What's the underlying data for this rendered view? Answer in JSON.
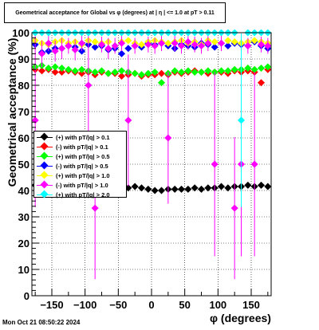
{
  "title": "Geometrical acceptance for Global vs φ (degrees) at | η | <= 1.0 at pT > 0.11",
  "xlabel": "φ (degrees)",
  "ylabel": "Geometrical acceptance (%)",
  "timestamp": "Mon Oct 21 08:50:22 2024",
  "legend": [
    {
      "label": "(+) with pT/|q| > 0.1",
      "color": "#000000"
    },
    {
      "label": "(-) with pT/|q| > 0.1",
      "color": "#ff0000"
    },
    {
      "label": "(+) with pT/|q| > 0.5",
      "color": "#00ff00"
    },
    {
      "label": "(-) with pT/|q| > 0.5",
      "color": "#0000ff"
    },
    {
      "label": "(+) with pT/|q| > 1.0",
      "color": "#ffff00"
    },
    {
      "label": "(-) with pT/|q| > 1.0",
      "color": "#ff00ff"
    },
    {
      "label": "(+) with pT/|q| > 2.0",
      "color": "#00ffff"
    }
  ],
  "chart_data": {
    "type": "scatter",
    "title": "Geometrical acceptance for Global vs φ (degrees) at | η | <= 1.0 at pT > 0.11",
    "xlabel": "φ (degrees)",
    "ylabel": "Geometrical acceptance (%)",
    "xlim": [
      -180,
      180
    ],
    "ylim": [
      0,
      100
    ],
    "xticks": [
      -150,
      -100,
      -50,
      0,
      50,
      100,
      150
    ],
    "yticks": [
      0,
      10,
      20,
      30,
      40,
      50,
      60,
      70,
      80,
      90,
      100
    ],
    "grid": true,
    "legend_position": "left-middle",
    "marker": "diamond",
    "series": [
      {
        "name": "(+) with pT/|q| > 0.1",
        "color": "#000000",
        "x": [
          -175,
          -165,
          -155,
          -145,
          -135,
          -125,
          -115,
          -105,
          -95,
          -85,
          -75,
          -65,
          -55,
          -45,
          -35,
          -25,
          -15,
          -5,
          5,
          15,
          25,
          35,
          45,
          55,
          65,
          75,
          85,
          95,
          105,
          115,
          125,
          135,
          145,
          155,
          165,
          175
        ],
        "y": [
          42.0,
          41.5,
          41.5,
          41.0,
          41.0,
          41.5,
          41.0,
          41.0,
          40.5,
          40.5,
          41.0,
          40.5,
          40.5,
          41.0,
          41.0,
          41.5,
          41.0,
          40.5,
          40.0,
          40.0,
          40.5,
          40.5,
          40.5,
          40.5,
          41.0,
          40.5,
          41.0,
          41.0,
          41.5,
          41.0,
          41.5,
          41.5,
          42.0,
          41.5,
          42.0,
          41.5
        ],
        "errors": []
      },
      {
        "name": "(-) with pT/|q| > 0.1",
        "color": "#ff0000",
        "x": [
          -175,
          -165,
          -155,
          -145,
          -135,
          -125,
          -115,
          -105,
          -95,
          -85,
          -75,
          -65,
          -55,
          -45,
          -35,
          -25,
          -15,
          -5,
          5,
          15,
          25,
          35,
          45,
          55,
          65,
          75,
          85,
          95,
          105,
          115,
          125,
          135,
          145,
          155,
          165,
          175
        ],
        "y": [
          86.0,
          85.5,
          86.0,
          85.0,
          85.0,
          85.5,
          85.0,
          84.5,
          85.0,
          84.0,
          85.0,
          84.5,
          84.5,
          83.5,
          84.0,
          84.5,
          83.5,
          84.0,
          84.0,
          84.5,
          84.0,
          85.0,
          84.5,
          85.0,
          85.5,
          85.0,
          84.5,
          85.0,
          85.0,
          84.5,
          85.5,
          85.0,
          85.5,
          85.0,
          81.0,
          86.0
        ],
        "errors": []
      },
      {
        "name": "(+) with pT/|q| > 0.5",
        "color": "#00ff00",
        "x": [
          -175,
          -165,
          -155,
          -145,
          -135,
          -125,
          -115,
          -105,
          -95,
          -85,
          -75,
          -65,
          -55,
          -45,
          -35,
          -25,
          -15,
          -5,
          5,
          15,
          25,
          35,
          45,
          55,
          65,
          75,
          85,
          95,
          105,
          115,
          125,
          135,
          145,
          155,
          165,
          175
        ],
        "y": [
          87.0,
          87.5,
          86.5,
          87.0,
          86.5,
          86.0,
          85.5,
          86.0,
          85.5,
          85.0,
          85.5,
          84.5,
          85.0,
          85.5,
          85.0,
          84.5,
          84.0,
          84.5,
          85.0,
          81.0,
          84.5,
          85.5,
          85.0,
          85.5,
          85.0,
          85.0,
          85.5,
          85.0,
          85.5,
          85.5,
          86.0,
          86.0,
          86.5,
          86.0,
          86.5,
          87.0
        ],
        "errors": []
      },
      {
        "name": "(-) with pT/|q| > 0.5",
        "color": "#0000ff",
        "x": [
          -175,
          -165,
          -155,
          -145,
          -135,
          -125,
          -115,
          -105,
          -95,
          -85,
          -75,
          -65,
          -55,
          -45,
          -35,
          -25,
          -15,
          -5,
          5,
          15,
          25,
          35,
          45,
          55,
          65,
          75,
          85,
          95,
          105,
          115,
          125,
          135,
          145,
          155,
          165,
          175
        ],
        "y": [
          95.5,
          92.5,
          93.0,
          94.0,
          94.0,
          95.0,
          94.5,
          93.0,
          95.5,
          94.5,
          95.0,
          93.5,
          94.0,
          92.0,
          94.0,
          95.0,
          94.5,
          96.0,
          95.5,
          96.0,
          95.0,
          94.0,
          95.5,
          95.0,
          94.5,
          96.0,
          95.5,
          94.5,
          96.0,
          95.0,
          96.0,
          95.5,
          95.0,
          96.5,
          95.0,
          94.0
        ],
        "errors": []
      },
      {
        "name": "(+) with pT/|q| > 1.0",
        "color": "#ffff00",
        "x": [
          -175,
          -165,
          -155,
          -145,
          -135,
          -125,
          -115,
          -105,
          -95,
          -85,
          -75,
          -65,
          -55,
          -45,
          -35,
          -25,
          -15,
          -5,
          5,
          15,
          25,
          35,
          45,
          55,
          65,
          75,
          85,
          95,
          105,
          115,
          125,
          135,
          145,
          155,
          165,
          175
        ],
        "y": [
          97.0,
          96.0,
          95.5,
          96.5,
          97.0,
          96.0,
          96.5,
          95.5,
          97.0,
          96.5,
          96.0,
          96.5,
          95.0,
          96.5,
          97.0,
          96.0,
          95.5,
          96.5,
          97.0,
          96.5,
          96.0,
          96.5,
          97.0,
          96.0,
          96.5,
          95.5,
          97.0,
          96.5,
          96.0,
          97.0,
          96.5,
          96.0,
          96.5,
          97.0,
          96.5,
          96.0
        ],
        "errors": []
      },
      {
        "name": "(-) with pT/|q| > 1.0",
        "color": "#ff00ff",
        "x": [
          -175,
          -165,
          -155,
          -145,
          -135,
          -125,
          -115,
          -105,
          -95,
          -85,
          -75,
          -65,
          -55,
          -45,
          -35,
          -25,
          -15,
          -5,
          5,
          15,
          25,
          35,
          45,
          55,
          65,
          75,
          85,
          95,
          105,
          115,
          125,
          135,
          145,
          155,
          165,
          175
        ],
        "y": [
          66.7,
          92.0,
          96.0,
          93.0,
          94.0,
          95.0,
          93.5,
          96.0,
          80.0,
          33.3,
          95.5,
          94.0,
          95.0,
          96.0,
          66.7,
          95.0,
          100.0,
          95.5,
          95.0,
          96.0,
          60.0,
          96.0,
          95.0,
          96.5,
          95.5,
          95.0,
          96.0,
          50.0,
          96.0,
          100.0,
          33.3,
          50.0,
          95.0,
          50.0,
          95.5,
          95.0
        ],
        "errors": [
          33,
          5,
          3,
          4,
          4,
          3,
          4,
          3,
          20,
          27,
          3,
          4,
          3,
          3,
          25,
          3,
          0,
          3,
          3,
          3,
          25,
          3,
          3,
          3,
          3,
          3,
          3,
          35,
          3,
          0,
          27,
          35,
          3,
          35,
          3,
          3
        ]
      },
      {
        "name": "(+) with pT/|q| > 2.0",
        "color": "#00ffff",
        "x": [
          -175,
          -165,
          -155,
          -145,
          -135,
          -125,
          -115,
          -105,
          -95,
          -85,
          -75,
          -65,
          -55,
          -45,
          -35,
          -25,
          -15,
          -5,
          5,
          15,
          25,
          35,
          45,
          55,
          65,
          75,
          85,
          95,
          105,
          115,
          125,
          135,
          145,
          155,
          165,
          175
        ],
        "y": [
          100,
          100,
          100,
          100,
          100,
          100,
          100,
          100,
          100,
          100,
          100,
          100,
          100,
          100,
          100,
          100,
          100,
          100,
          100,
          100,
          100,
          100,
          100,
          100,
          100,
          100,
          100,
          100,
          100,
          100,
          100,
          66.7,
          100,
          100,
          100,
          100
        ],
        "errors": [
          0,
          0,
          0,
          0,
          0,
          0,
          0,
          0,
          0,
          0,
          0,
          0,
          0,
          0,
          0,
          0,
          0,
          0,
          0,
          0,
          0,
          0,
          0,
          0,
          0,
          0,
          0,
          0,
          0,
          0,
          0,
          33,
          0,
          0,
          0,
          0
        ]
      }
    ]
  }
}
